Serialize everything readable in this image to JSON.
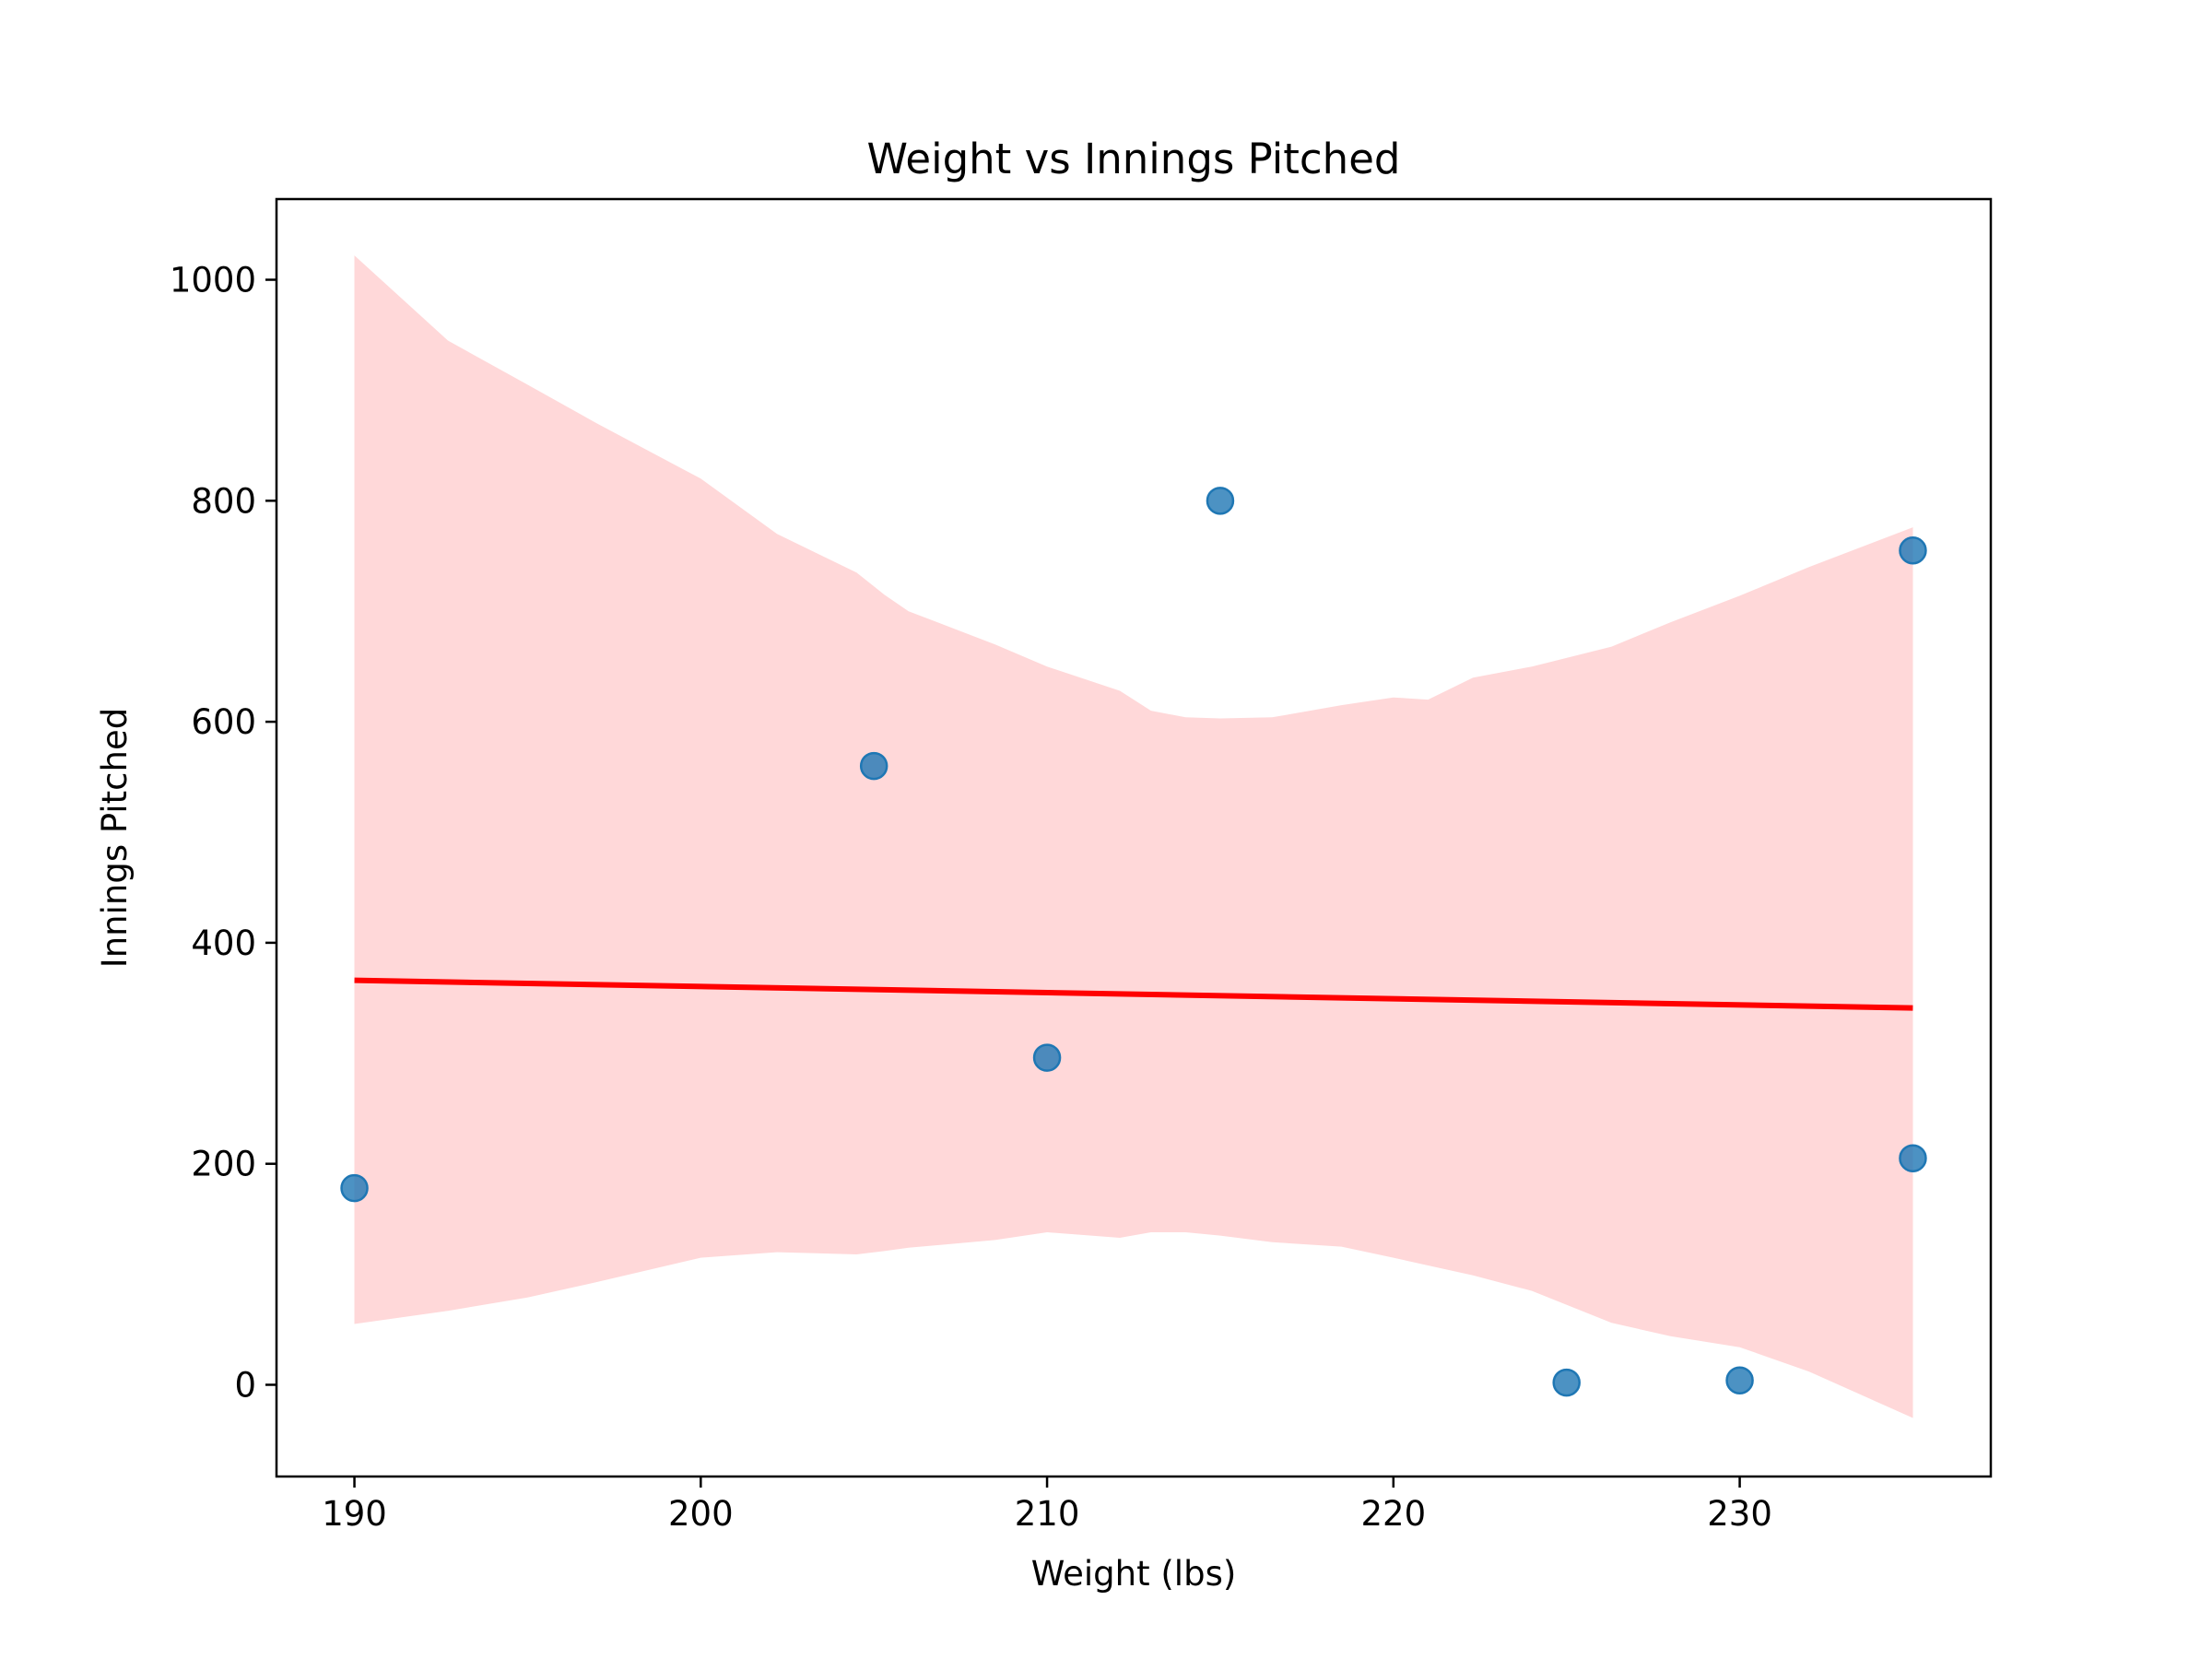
{
  "chart_data": {
    "type": "scatter",
    "title": "Weight vs Innings Pitched",
    "xlabel": "Weight (lbs)",
    "ylabel": "Innings Pitched",
    "xlim": [
      187.75,
      237.25
    ],
    "ylim": [
      -83,
      1073
    ],
    "x_ticks": [
      190,
      200,
      210,
      220,
      230
    ],
    "y_ticks": [
      0,
      200,
      400,
      600,
      800,
      1000
    ],
    "grid": false,
    "colors": {
      "points": "#1f77b4",
      "fit_line": "#ff0000",
      "confidence_band": "#ffd8d9"
    },
    "points": [
      {
        "x": 190,
        "y": 178
      },
      {
        "x": 205,
        "y": 560
      },
      {
        "x": 210,
        "y": 296
      },
      {
        "x": 215,
        "y": 800
      },
      {
        "x": 225,
        "y": 2
      },
      {
        "x": 230,
        "y": 4
      },
      {
        "x": 235,
        "y": 755
      },
      {
        "x": 235,
        "y": 205
      }
    ],
    "fit_line": {
      "x": [
        190,
        235
      ],
      "y": [
        366,
        341
      ]
    },
    "confidence_band": {
      "x": [
        190,
        192.7,
        195,
        197,
        200,
        202.2,
        204.5,
        205.3,
        206,
        208.5,
        210,
        212.1,
        213,
        214,
        215,
        216.5,
        218.5,
        220,
        221,
        222.3,
        224,
        226.3,
        228,
        230,
        232,
        235
      ],
      "upper": [
        1022,
        945,
        905,
        870,
        820,
        770,
        735,
        715,
        700,
        670,
        650,
        628,
        610,
        604,
        603,
        604,
        615,
        622,
        620,
        640,
        650,
        668,
        690,
        714,
        740,
        776
      ],
      "lower": [
        55,
        67,
        79,
        93,
        115,
        120,
        118,
        121,
        124,
        131,
        138,
        133,
        138,
        138,
        135,
        129,
        125,
        115,
        108,
        99,
        85,
        56,
        44,
        34,
        12,
        -30
      ]
    }
  }
}
